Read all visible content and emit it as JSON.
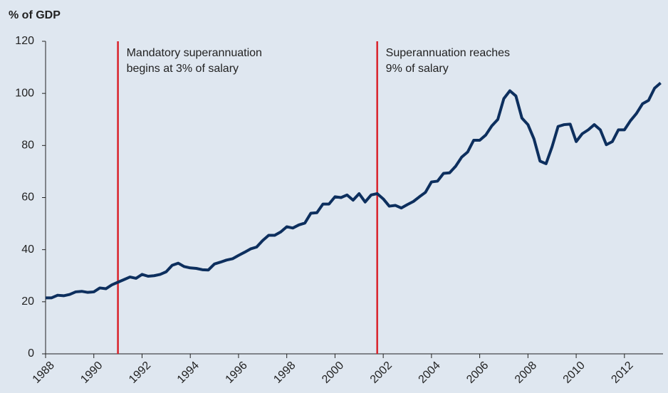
{
  "chart_data": {
    "type": "line",
    "ylabel": "% of GDP",
    "x": [
      1988,
      1988.25,
      1988.5,
      1988.75,
      1989,
      1989.25,
      1989.5,
      1989.75,
      1990,
      1990.25,
      1990.5,
      1990.75,
      1991,
      1991.25,
      1991.5,
      1991.75,
      1992,
      1992.25,
      1992.5,
      1992.75,
      1993,
      1993.25,
      1993.5,
      1993.75,
      1994,
      1994.25,
      1994.5,
      1994.75,
      1995,
      1995.25,
      1995.5,
      1995.75,
      1996,
      1996.25,
      1996.5,
      1996.75,
      1997,
      1997.25,
      1997.5,
      1997.75,
      1998,
      1998.25,
      1998.5,
      1998.75,
      1999,
      1999.25,
      1999.5,
      1999.75,
      2000,
      2000.25,
      2000.5,
      2000.75,
      2001,
      2001.25,
      2001.5,
      2001.75,
      2002,
      2002.25,
      2002.5,
      2002.75,
      2003,
      2003.25,
      2003.5,
      2003.75,
      2004,
      2004.25,
      2004.5,
      2004.75,
      2005,
      2005.25,
      2005.5,
      2005.75,
      2006,
      2006.25,
      2006.5,
      2006.75,
      2007,
      2007.25,
      2007.5,
      2007.75,
      2008,
      2008.25,
      2008.5,
      2008.75,
      2009,
      2009.25,
      2009.5,
      2009.75,
      2010,
      2010.25,
      2010.5,
      2010.75,
      2011,
      2011.25,
      2011.5,
      2011.75,
      2012,
      2012.25,
      2012.5,
      2012.75,
      2013,
      2013.25,
      2013.5
    ],
    "series": [
      {
        "color": "#0d2f5e",
        "values": [
          21.5,
          21.5,
          22.5,
          22.3,
          22.8,
          23.8,
          24,
          23.6,
          23.8,
          25.3,
          25,
          26.5,
          27.5,
          28.5,
          29.5,
          29,
          30.5,
          29.8,
          30,
          30.5,
          31.5,
          34,
          34.8,
          33.5,
          33,
          32.8,
          32.3,
          32.2,
          34.5,
          35.2,
          36,
          36.5,
          37.8,
          39,
          40.3,
          41,
          43.5,
          45.5,
          45.5,
          46.8,
          48.8,
          48.3,
          49.5,
          50.2,
          54,
          54.2,
          57.5,
          57.5,
          60.3,
          60,
          61,
          59,
          61.5,
          58.3,
          61,
          61.5,
          59.5,
          56.7,
          57,
          56,
          57.3,
          58.5,
          60.3,
          62,
          66,
          66.3,
          69.3,
          69.5,
          72,
          75.5,
          77.5,
          82,
          82,
          84,
          87.5,
          90,
          98,
          101,
          99,
          90.5,
          88,
          82.5,
          74,
          73,
          79.5,
          87.3,
          88,
          88.2,
          81.5,
          84.5,
          86,
          88,
          86,
          80.3,
          81.5,
          86,
          86,
          89.5,
          92.3,
          96,
          97.3,
          102,
          104
        ]
      }
    ],
    "xlim": [
      1988,
      2013.6
    ],
    "xticks": [
      1988,
      1990,
      1992,
      1994,
      1996,
      1998,
      2000,
      2002,
      2004,
      2006,
      2008,
      2010,
      2012
    ],
    "ylim": [
      0,
      120
    ],
    "yticks": [
      0,
      20,
      40,
      60,
      80,
      100,
      120
    ],
    "annotations": [
      {
        "x": 1991,
        "color": "#d9222a",
        "text": [
          "Mandatory superannuation",
          "begins at 3% of salary"
        ]
      },
      {
        "x": 2001.75,
        "color": "#d9222a",
        "text": [
          "Superannuation reaches",
          "9% of salary"
        ]
      }
    ]
  }
}
